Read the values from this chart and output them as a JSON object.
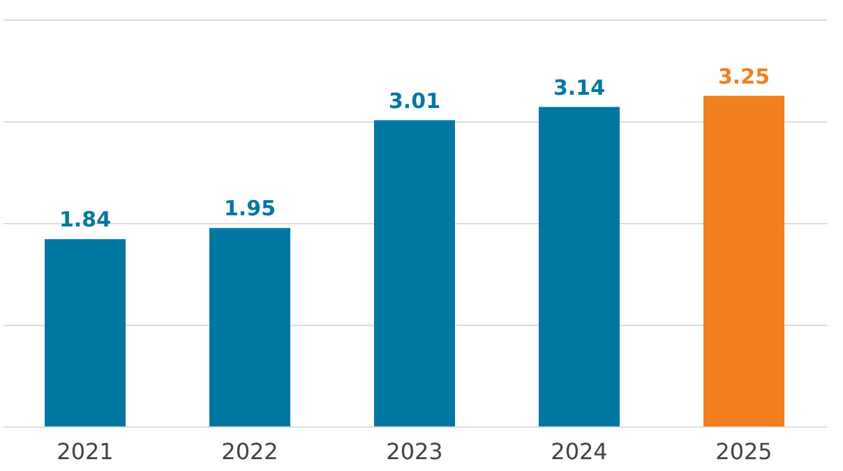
{
  "chart_data": {
    "type": "bar",
    "categories": [
      "2021",
      "2022",
      "2023",
      "2024",
      "2025"
    ],
    "values": [
      1.84,
      1.95,
      3.01,
      3.14,
      3.25
    ],
    "colors": [
      "#0077a1",
      "#0077a1",
      "#0077a1",
      "#0077a1",
      "#f0801f"
    ],
    "ylim": [
      0,
      4
    ],
    "yticks": [
      {
        "value": 0,
        "label": null
      },
      {
        "value": 1,
        "label": null
      },
      {
        "value": 2,
        "label": null
      },
      {
        "value": 3,
        "label": null
      },
      {
        "value": 4,
        "label": null
      }
    ],
    "tick_labels": "x",
    "grid": "y",
    "data_labels": true
  }
}
